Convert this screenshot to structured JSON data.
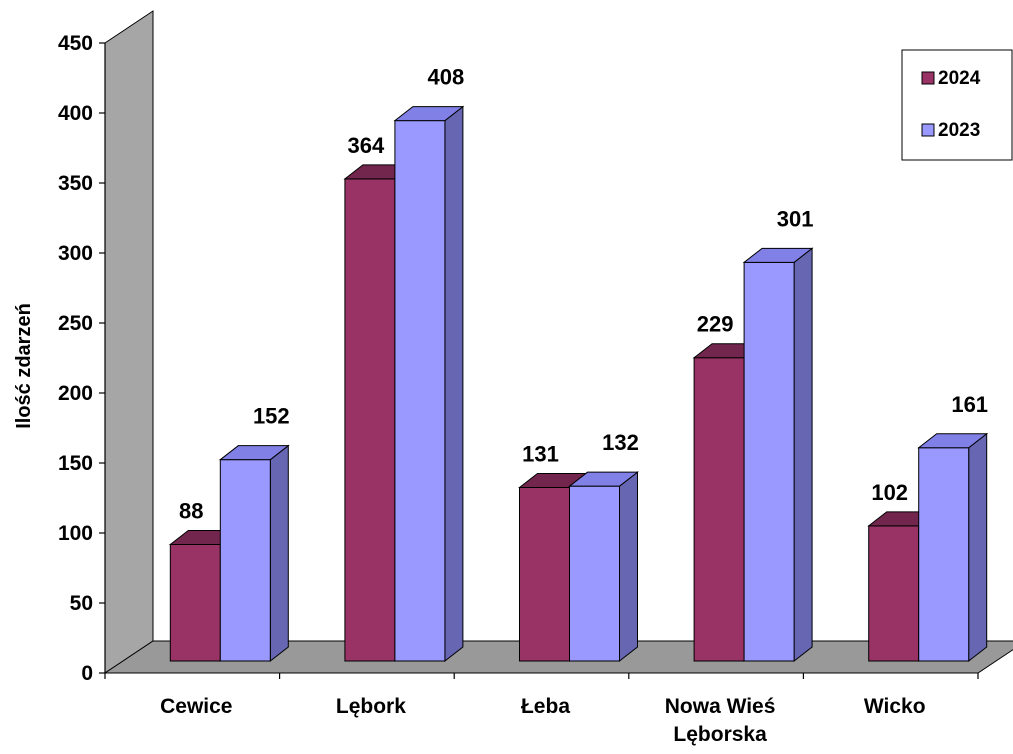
{
  "chart_data": {
    "type": "bar",
    "title": "",
    "xlabel": "",
    "ylabel": "Ilość zdarzeń",
    "ylim": [
      0,
      450
    ],
    "yticks": [
      0,
      50,
      100,
      150,
      200,
      250,
      300,
      350,
      400,
      450
    ],
    "categories": [
      [
        "Cewice"
      ],
      [
        "Lębork"
      ],
      [
        "Łeba"
      ],
      [
        "Nowa Wieś",
        "Lęborska"
      ],
      [
        "Wicko"
      ]
    ],
    "series": [
      {
        "name": "2024",
        "values": [
          88,
          364,
          131,
          229,
          102
        ],
        "color": "#993366",
        "side_color": "#4d1a33",
        "top_color": "#73264d"
      },
      {
        "name": "2023",
        "values": [
          152,
          408,
          132,
          301,
          161
        ],
        "color": "#9999ff",
        "side_color": "#6666b3",
        "top_color": "#8080e6"
      }
    ],
    "grid": false,
    "legend": "top-right",
    "three_d": true,
    "floor_color": "#999999",
    "wall_color": "#a6a6a6"
  }
}
